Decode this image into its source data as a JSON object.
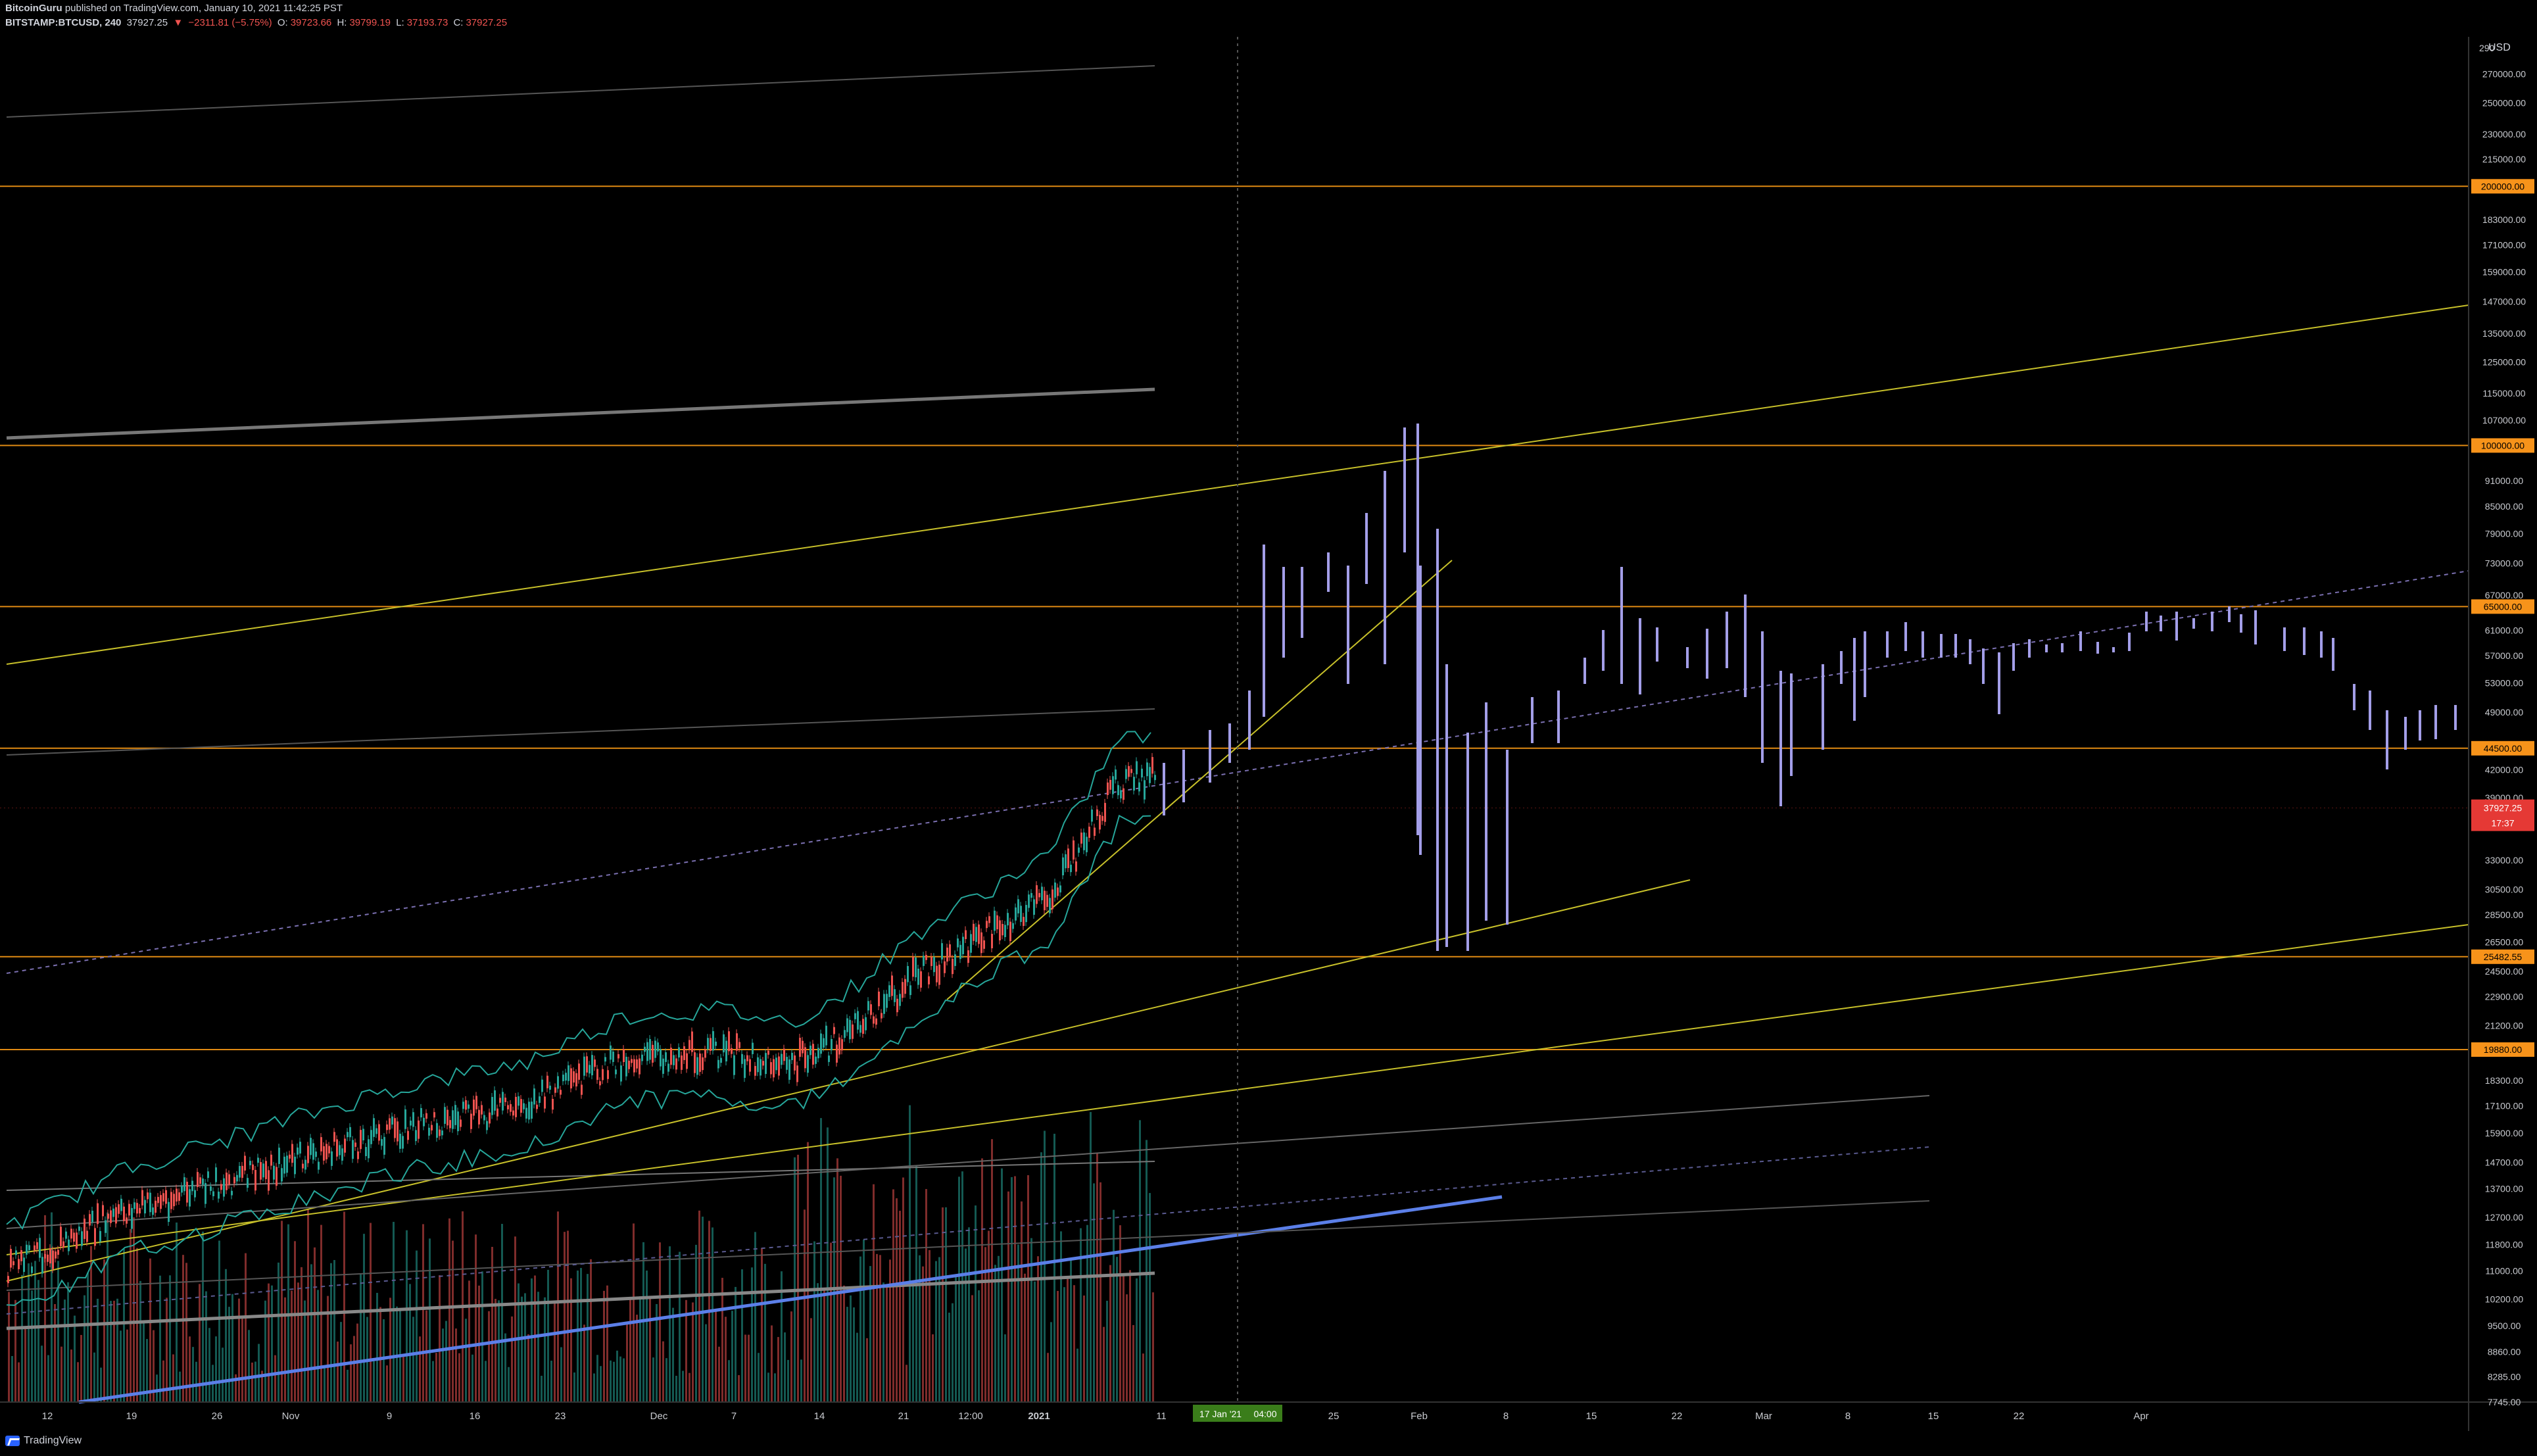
{
  "header": {
    "author": "BitcoinGuru",
    "published": "published on TradingView.com, January 10, 2021 11:42:25 PST",
    "symbol": "BITSTAMP:BTCUSD, 240",
    "last": "37927.25",
    "change_arrow": "▼",
    "change": "−2311.81 (−5.75%)",
    "o_label": "O:",
    "o_value": "39723.66",
    "h_label": "H:",
    "h_value": "39799.19",
    "l_label": "L:",
    "l_value": "37193.73",
    "c_label": "C:",
    "c_value": "37927.25"
  },
  "currency": "USD",
  "brand": "TradingView",
  "colors": {
    "background": "#000000",
    "axis_text": "#c8cacf",
    "horizontal_level": "#e08a13",
    "level_badge": "#f7931a",
    "trend": "#c7c02a",
    "forecast_bar": "#a39ee8",
    "price_badge": "#e53935",
    "crosshair_badge": "#3a7d1a",
    "blue_trend": "#5b7fe8",
    "gray_trend": "#777777"
  },
  "chart_data": {
    "type": "candlestick",
    "scale": "log",
    "ylim": [
      7745,
      290000
    ],
    "price_axis_ticks": [
      "290000.00",
      "270000.00",
      "250000.00",
      "230000.00",
      "215000.00",
      "200000.00",
      "183000.00",
      "171000.00",
      "159000.00",
      "147000.00",
      "135000.00",
      "125000.00",
      "115000.00",
      "107000.00",
      "99000.00",
      "91000.00",
      "85000.00",
      "79000.00",
      "73000.00",
      "67000.00",
      "61000.00",
      "57000.00",
      "53000.00",
      "49000.00",
      "45000.00",
      "42000.00",
      "39000.00",
      "36000.00",
      "33000.00",
      "30500.00",
      "28500.00",
      "26500.00",
      "24500.00",
      "22900.00",
      "21200.00",
      "19800.00",
      "18300.00",
      "17100.00",
      "15900.00",
      "14700.00",
      "13700.00",
      "12700.00",
      "11800.00",
      "11000.00",
      "10200.00",
      "9500.00",
      "8860.00",
      "8285.00",
      "7745.00"
    ],
    "x_axis_ticks": [
      "12",
      "19",
      "26",
      "Nov",
      "9",
      "16",
      "23",
      "Dec",
      "7",
      "14",
      "21",
      "12:00",
      "2021",
      "11",
      "17 Jan '21",
      "04:00",
      "25",
      "Feb",
      "8",
      "15",
      "22",
      "Mar",
      "8",
      "15",
      "22",
      "Apr"
    ],
    "horizontal_levels": [
      "200000.00",
      "100000.00",
      "65000.00",
      "44500.00",
      "25482.55",
      "19880.00"
    ],
    "last_price": "37927.25",
    "countdown": "17:37",
    "crosshair_date": "17 Jan '21",
    "crosshair_time": "04:00"
  }
}
